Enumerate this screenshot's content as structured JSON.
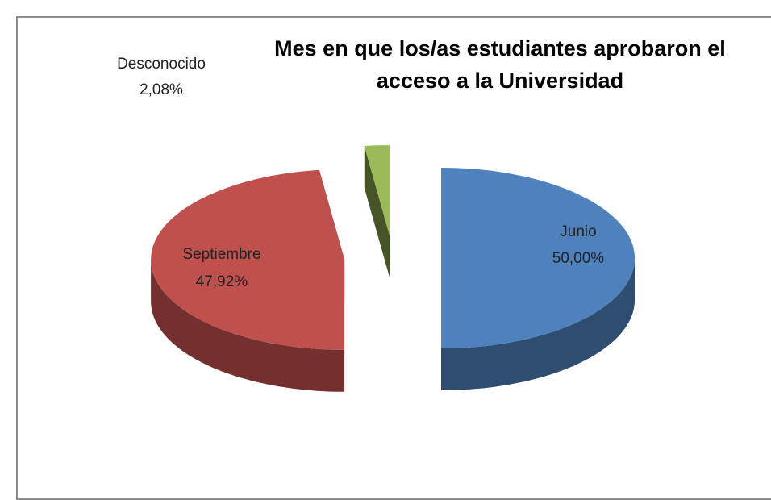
{
  "chart_data": {
    "type": "pie",
    "title": "Mes en que los/as estudiantes aprobaron el acceso a la Universidad",
    "categories": [
      "Junio",
      "Septiembre",
      "Desconocido"
    ],
    "values": [
      50,
      47.92,
      2.08
    ],
    "value_labels": [
      "50,00%",
      "47,92%",
      "2,08%"
    ],
    "colors": [
      "#4f81bd",
      "#c0504d",
      "#9bbb59"
    ]
  }
}
